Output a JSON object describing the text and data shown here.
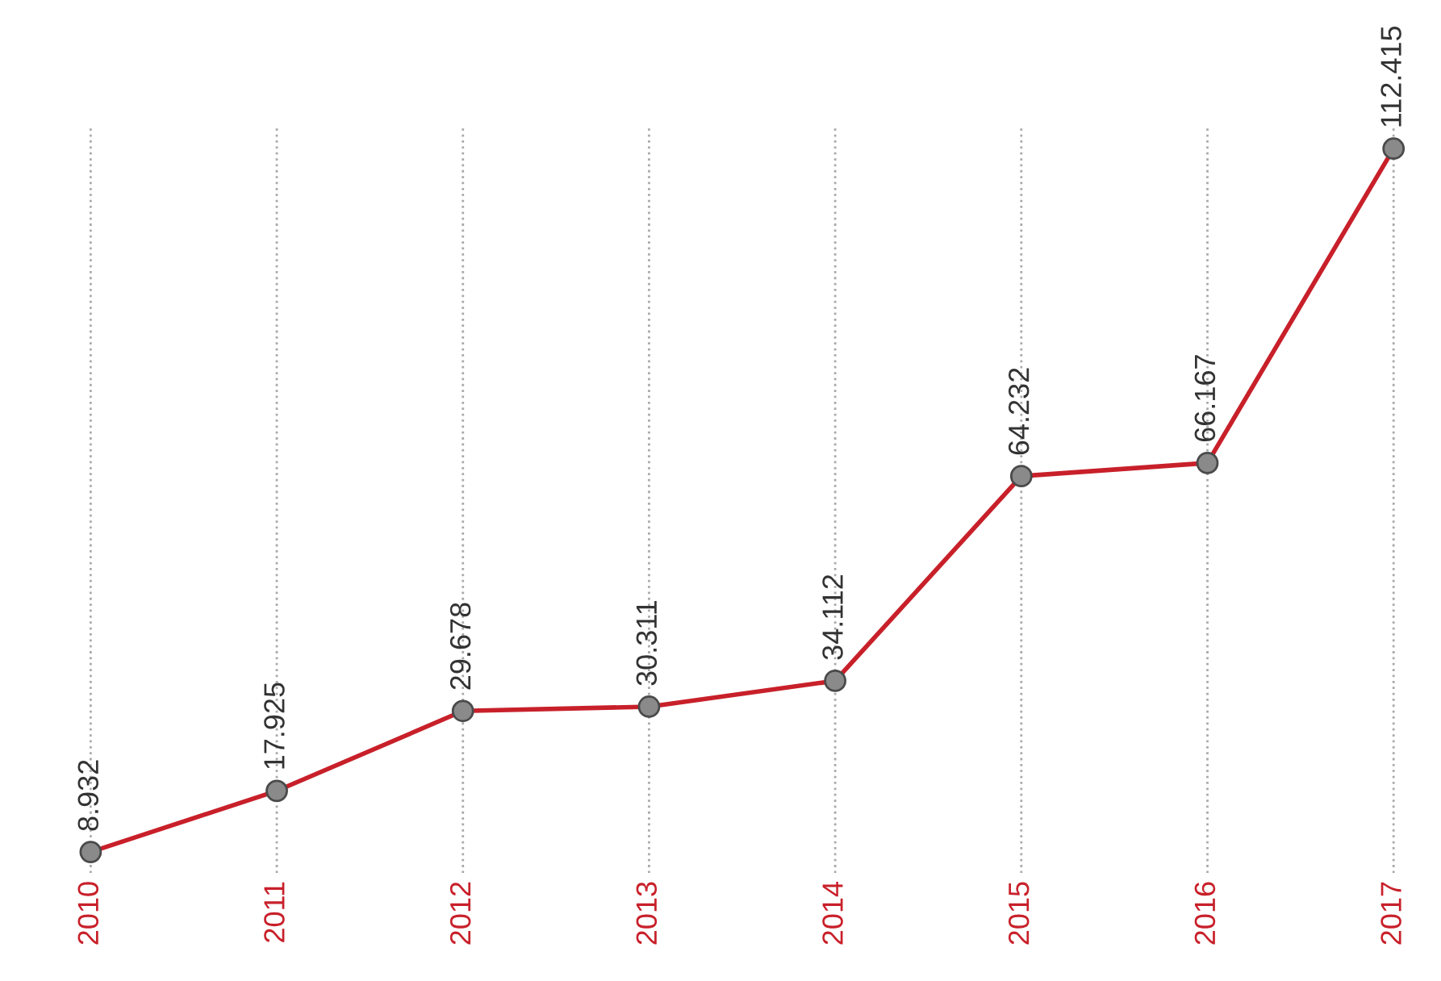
{
  "chart_data": {
    "type": "line",
    "categories": [
      "2010",
      "2011",
      "2012",
      "2013",
      "2014",
      "2015",
      "2016",
      "2017"
    ],
    "series": [
      {
        "color": "#c8202a",
        "values": [
          8.932,
          17.925,
          29.678,
          30.311,
          34.112,
          64.232,
          66.167,
          112.415
        ]
      }
    ],
    "data_labels": true,
    "grid": "x",
    "marker": "circle",
    "line_style": "solid",
    "tick_labels": "x",
    "legend": false
  }
}
